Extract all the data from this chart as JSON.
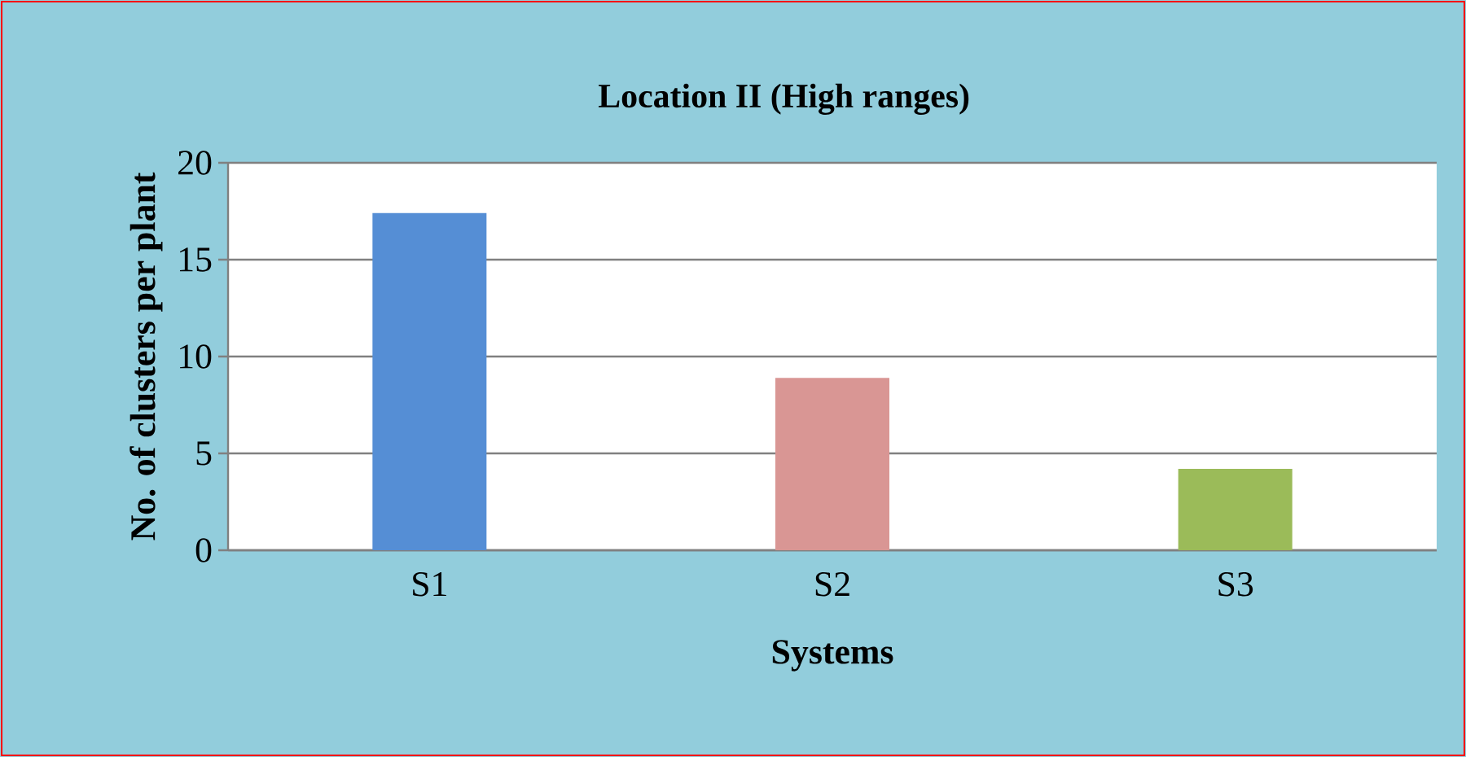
{
  "chart_data": {
    "type": "bar",
    "title": "Location II (High ranges)",
    "xlabel": "Systems",
    "ylabel": "No.  of clusters per plant",
    "categories": [
      "S1",
      "S2",
      "S3"
    ],
    "values": [
      17.4,
      8.9,
      4.2
    ],
    "colors": [
      "#558ed5",
      "#d99694",
      "#9bbb59"
    ],
    "ylim": [
      0,
      20
    ],
    "yticks": [
      0,
      5,
      10,
      15,
      20
    ],
    "grid": "y"
  }
}
